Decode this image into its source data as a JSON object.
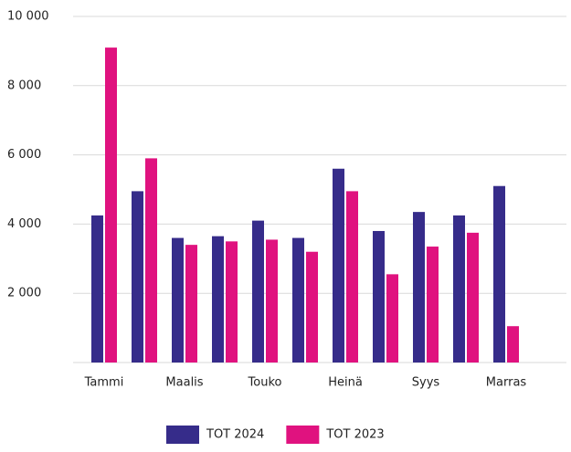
{
  "chart_data": {
    "type": "bar",
    "categories": [
      "Tammi",
      null,
      "Maalis",
      null,
      "Touko",
      null,
      "Heinä",
      null,
      "Syys",
      null,
      "Marras",
      null
    ],
    "series": [
      {
        "name": "TOT 2024",
        "color": "#362c8a",
        "values": [
          4250,
          4950,
          3600,
          3650,
          4100,
          3600,
          5600,
          3800,
          4350,
          4250,
          5100,
          null
        ]
      },
      {
        "name": "TOT 2023",
        "color": "#e0127f",
        "values": [
          9100,
          5900,
          3400,
          3500,
          3550,
          3200,
          4950,
          2550,
          3350,
          3750,
          1050,
          null
        ]
      }
    ],
    "ylim": [
      0,
      10000
    ],
    "yticks": [
      {
        "value": 2000,
        "label": "2 000"
      },
      {
        "value": 4000,
        "label": "4 000"
      },
      {
        "value": 6000,
        "label": "6 000"
      },
      {
        "value": 8000,
        "label": "8 000"
      },
      {
        "value": 10000,
        "label": "10 000"
      }
    ],
    "grid": true,
    "legend": "bottom"
  }
}
